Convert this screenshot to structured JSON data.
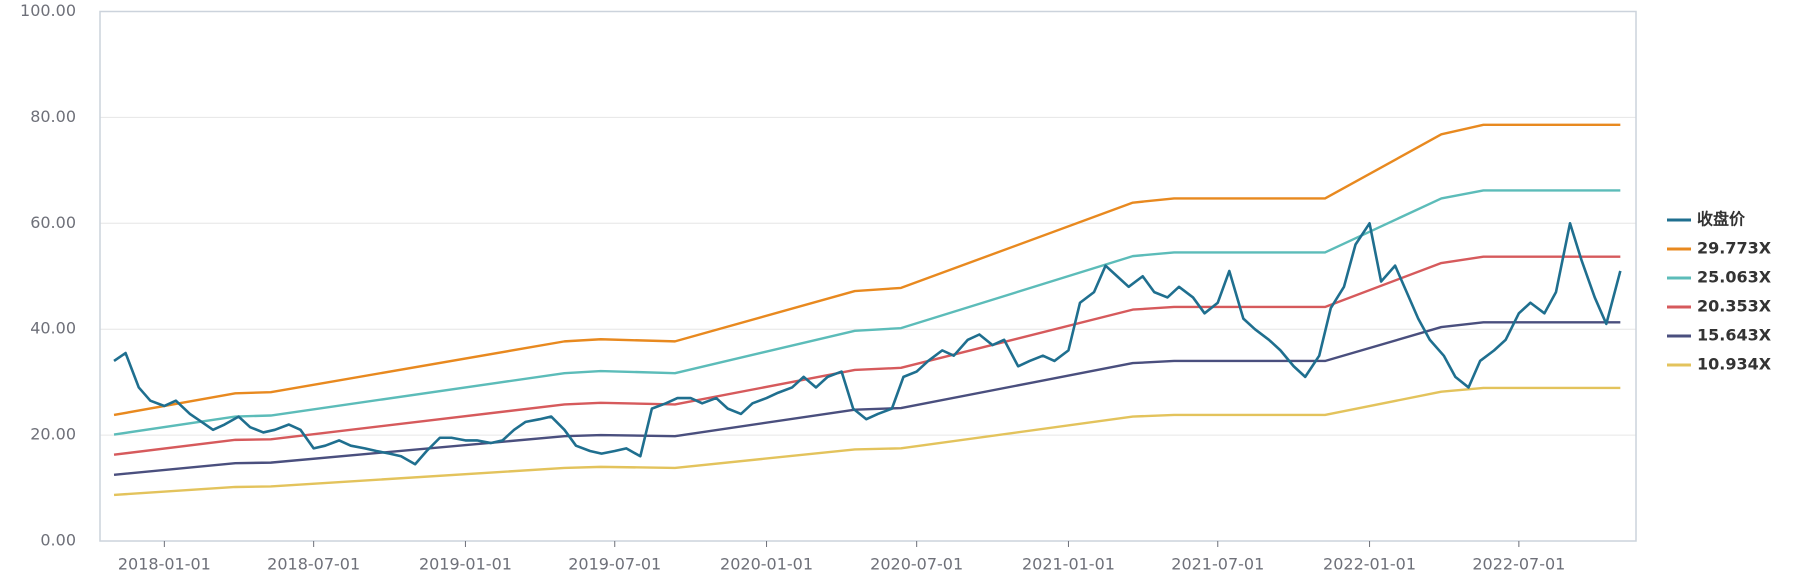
{
  "chart_data": {
    "type": "line",
    "xlim": [
      "2017-10-15",
      "2022-11-20"
    ],
    "xticks": [
      "2018-01-01",
      "2018-07-01",
      "2019-01-01",
      "2019-07-01",
      "2020-01-01",
      "2020-07-01",
      "2021-01-01",
      "2021-07-01",
      "2022-01-01",
      "2022-07-01"
    ],
    "ylim": [
      0,
      100
    ],
    "yticks": [
      {
        "value": 0,
        "label": "0.00"
      },
      {
        "value": 20,
        "label": "20.00"
      },
      {
        "value": 40,
        "label": "40.00"
      },
      {
        "value": 60,
        "label": "60.00"
      },
      {
        "value": 80,
        "label": "80.00"
      },
      {
        "value": 100,
        "label": "100.00"
      }
    ],
    "grid": true,
    "legend": "right",
    "series": [
      {
        "name": "收盘价",
        "color": "#1f6f8f",
        "x": [
          "2017-11-01",
          "2017-11-15",
          "2017-12-01",
          "2017-12-15",
          "2018-01-01",
          "2018-01-15",
          "2018-02-01",
          "2018-02-15",
          "2018-03-01",
          "2018-03-15",
          "2018-04-01",
          "2018-04-15",
          "2018-05-01",
          "2018-05-15",
          "2018-06-01",
          "2018-06-15",
          "2018-07-01",
          "2018-07-15",
          "2018-08-01",
          "2018-08-15",
          "2018-09-01",
          "2018-09-15",
          "2018-10-01",
          "2018-10-15",
          "2018-11-01",
          "2018-11-15",
          "2018-12-01",
          "2018-12-15",
          "2019-01-01",
          "2019-01-15",
          "2019-02-01",
          "2019-02-15",
          "2019-03-01",
          "2019-03-15",
          "2019-04-01",
          "2019-04-15",
          "2019-05-01",
          "2019-05-15",
          "2019-06-01",
          "2019-06-15",
          "2019-07-01",
          "2019-07-15",
          "2019-08-01",
          "2019-08-15",
          "2019-09-01",
          "2019-09-15",
          "2019-10-01",
          "2019-10-15",
          "2019-11-01",
          "2019-11-15",
          "2019-12-01",
          "2019-12-15",
          "2020-01-01",
          "2020-01-15",
          "2020-02-01",
          "2020-02-15",
          "2020-03-01",
          "2020-03-15",
          "2020-04-01",
          "2020-04-15",
          "2020-05-01",
          "2020-05-15",
          "2020-06-01",
          "2020-06-15",
          "2020-07-01",
          "2020-07-15",
          "2020-08-01",
          "2020-08-15",
          "2020-09-01",
          "2020-09-15",
          "2020-10-01",
          "2020-10-15",
          "2020-11-01",
          "2020-11-15",
          "2020-12-01",
          "2020-12-15",
          "2021-01-01",
          "2021-01-15",
          "2021-02-01",
          "2021-02-15",
          "2021-03-01",
          "2021-03-15",
          "2021-04-01",
          "2021-04-15",
          "2021-05-01",
          "2021-05-15",
          "2021-06-01",
          "2021-06-15",
          "2021-07-01",
          "2021-07-15",
          "2021-08-01",
          "2021-08-15",
          "2021-09-01",
          "2021-09-15",
          "2021-10-01",
          "2021-10-15",
          "2021-11-01",
          "2021-11-15",
          "2021-12-01",
          "2021-12-15",
          "2022-01-01",
          "2022-01-15",
          "2022-02-01",
          "2022-02-15",
          "2022-03-01",
          "2022-03-15",
          "2022-04-01",
          "2022-04-15",
          "2022-05-01",
          "2022-05-15",
          "2022-06-01",
          "2022-06-15",
          "2022-07-01",
          "2022-07-15",
          "2022-08-01",
          "2022-08-15",
          "2022-09-01",
          "2022-09-15",
          "2022-10-01",
          "2022-10-15",
          "2022-11-01"
        ],
        "values": [
          34,
          35.5,
          29,
          26.5,
          25.5,
          26.5,
          24,
          22.5,
          21,
          22,
          23.5,
          21.5,
          20.5,
          21,
          22,
          21,
          17.5,
          18,
          19,
          18,
          17.5,
          17,
          16.5,
          16,
          14.5,
          17,
          19.5,
          19.5,
          19,
          19,
          18.5,
          19,
          21,
          22.5,
          23,
          23.5,
          21,
          18,
          17,
          16.5,
          17,
          17.5,
          16,
          25,
          26,
          27,
          27,
          26,
          27,
          25,
          24,
          26,
          27,
          28,
          29,
          31,
          29,
          31,
          32,
          25,
          23,
          24,
          25,
          31,
          32,
          34,
          36,
          35,
          38,
          39,
          37,
          38,
          33,
          34,
          35,
          34,
          36,
          45,
          47,
          52,
          50,
          48,
          50,
          47,
          46,
          48,
          46,
          43,
          45,
          51,
          42,
          40,
          38,
          36,
          33,
          31,
          35,
          44,
          48,
          56,
          60,
          49,
          52,
          47,
          42,
          38,
          35,
          31,
          29,
          34,
          36,
          38,
          43,
          45,
          43,
          47,
          60,
          53,
          46,
          41,
          51
        ]
      },
      {
        "name": "29.773X",
        "color": "#e8891f",
        "x": [
          "2017-11-01",
          "2018-03-28",
          "2018-05-10",
          "2019-05-01",
          "2019-06-14",
          "2019-09-12",
          "2020-04-17",
          "2020-06-12",
          "2021-03-20",
          "2021-05-09",
          "2021-11-08",
          "2022-03-29",
          "2022-05-19",
          "2022-11-01"
        ],
        "values": [
          23.8,
          27.9,
          28.1,
          37.7,
          38.1,
          37.7,
          47.2,
          47.8,
          63.9,
          64.7,
          64.7,
          76.8,
          78.6,
          78.6
        ]
      },
      {
        "name": "25.063X",
        "color": "#5cbcb9",
        "x": [
          "2017-11-01",
          "2018-03-28",
          "2018-05-10",
          "2019-05-01",
          "2019-06-14",
          "2019-09-12",
          "2020-04-17",
          "2020-06-12",
          "2021-03-20",
          "2021-05-09",
          "2021-11-08",
          "2022-03-29",
          "2022-05-19",
          "2022-11-01"
        ],
        "values": [
          20.1,
          23.5,
          23.7,
          31.7,
          32.1,
          31.7,
          39.7,
          40.2,
          53.8,
          54.5,
          54.5,
          64.7,
          66.2,
          66.2
        ]
      },
      {
        "name": "20.353X",
        "color": "#d65a5c",
        "x": [
          "2017-11-01",
          "2018-03-28",
          "2018-05-10",
          "2019-05-01",
          "2019-06-14",
          "2019-09-12",
          "2020-04-17",
          "2020-06-12",
          "2021-03-20",
          "2021-05-09",
          "2021-11-08",
          "2022-03-29",
          "2022-05-19",
          "2022-11-01"
        ],
        "values": [
          16.3,
          19.1,
          19.2,
          25.8,
          26.1,
          25.8,
          32.3,
          32.7,
          43.7,
          44.2,
          44.2,
          52.5,
          53.7,
          53.7
        ]
      },
      {
        "name": "15.643X",
        "color": "#4a4f7e",
        "x": [
          "2017-11-01",
          "2018-03-28",
          "2018-05-10",
          "2019-05-01",
          "2019-06-14",
          "2019-09-12",
          "2020-04-17",
          "2020-06-12",
          "2021-03-20",
          "2021-05-09",
          "2021-11-08",
          "2022-03-29",
          "2022-05-19",
          "2022-11-01"
        ],
        "values": [
          12.5,
          14.7,
          14.8,
          19.8,
          20.0,
          19.8,
          24.8,
          25.1,
          33.6,
          34.0,
          34.0,
          40.4,
          41.3,
          41.3
        ]
      },
      {
        "name": "10.934X",
        "color": "#e3c35c",
        "x": [
          "2017-11-01",
          "2018-03-28",
          "2018-05-10",
          "2019-05-01",
          "2019-06-14",
          "2019-09-12",
          "2020-04-17",
          "2020-06-12",
          "2021-03-20",
          "2021-05-09",
          "2021-11-08",
          "2022-03-29",
          "2022-05-19",
          "2022-11-01"
        ],
        "values": [
          8.7,
          10.2,
          10.3,
          13.8,
          14.0,
          13.8,
          17.3,
          17.5,
          23.5,
          23.8,
          23.8,
          28.2,
          28.9,
          28.9
        ]
      }
    ]
  }
}
